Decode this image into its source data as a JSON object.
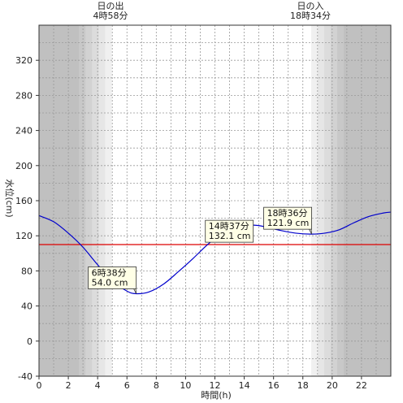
{
  "sun": {
    "rise_label": "日の出",
    "rise_time": "4時58分",
    "set_label": "日の入",
    "set_time": "18時34分"
  },
  "chart_data": {
    "type": "line",
    "xlabel": "時間(h)",
    "ylabel": "水位(cm)",
    "xlim": [
      0,
      24
    ],
    "ylim": [
      -40,
      360
    ],
    "xticks": [
      0,
      2,
      4,
      6,
      8,
      10,
      12,
      14,
      16,
      18,
      20,
      22
    ],
    "yticks": [
      -40,
      0,
      40,
      80,
      120,
      160,
      200,
      240,
      280,
      320
    ],
    "grid": true,
    "reference_line": {
      "y": 110,
      "color": "#dd0000"
    },
    "series": [
      {
        "color": "#0000cc",
        "x": [
          0,
          1,
          2,
          3,
          4,
          5,
          6,
          6.633,
          7.5,
          8.5,
          9.5,
          10.5,
          11.5,
          12.5,
          13.5,
          14.617,
          15.5,
          16.5,
          17.5,
          18.6,
          19.5,
          20.5,
          21.5,
          22.5,
          23.5,
          24
        ],
        "y": [
          143,
          136,
          123,
          107,
          87,
          69,
          57,
          54.0,
          56,
          65,
          79,
          94,
          110,
          123,
          130,
          132.1,
          130,
          126,
          123,
          121.9,
          123,
          127,
          135,
          142,
          146,
          147
        ]
      }
    ],
    "annotations": [
      {
        "time": "6時38分",
        "value": "54.0 cm",
        "x": 6.633,
        "y": 54.0
      },
      {
        "time": "14時37分",
        "value": "132.1 cm",
        "x": 14.617,
        "y": 132.1
      },
      {
        "time": "18時36分",
        "value": "121.9 cm",
        "x": 18.6,
        "y": 121.9
      }
    ],
    "shading": {
      "sunrise_hour": 4.967,
      "sunset_hour": 18.567,
      "night_color": "#c0c0c0",
      "day_color": "#ffffff"
    }
  }
}
